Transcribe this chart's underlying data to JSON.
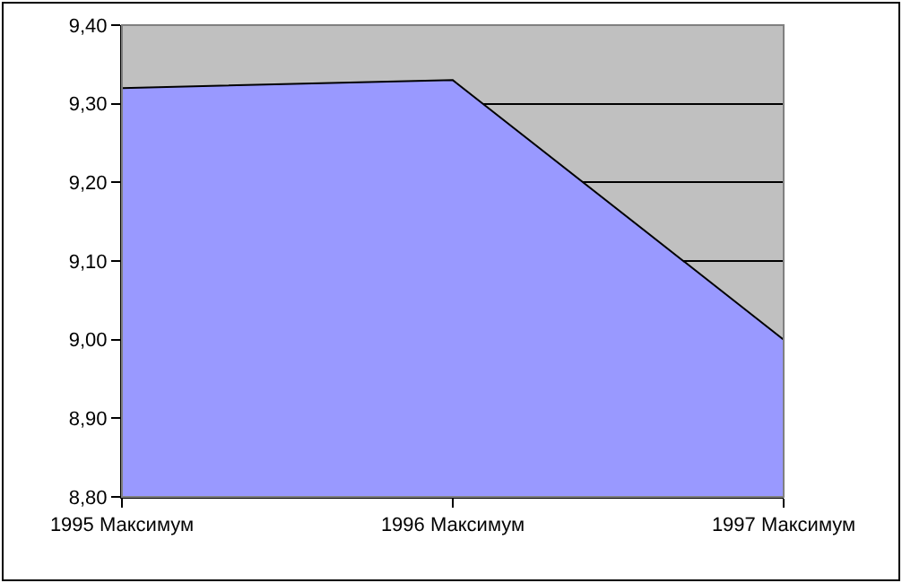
{
  "chart_data": {
    "type": "area",
    "categories": [
      "1995 Максимум",
      "1996 Максимум",
      "1997 Максимум"
    ],
    "series": [
      {
        "color": "#9999ff",
        "values": [
          9.32,
          9.33,
          9.0
        ]
      }
    ],
    "ylim": [
      8.8,
      9.4
    ],
    "yticks": [
      {
        "value": 8.8,
        "label": "8,80"
      },
      {
        "value": 8.9,
        "label": "8,90"
      },
      {
        "value": 9.0,
        "label": "9,00"
      },
      {
        "value": 9.1,
        "label": "9,10"
      },
      {
        "value": 9.2,
        "label": "9,20"
      },
      {
        "value": 9.3,
        "label": "9,30"
      },
      {
        "value": 9.4,
        "label": "9,40"
      }
    ],
    "grid": "y"
  }
}
